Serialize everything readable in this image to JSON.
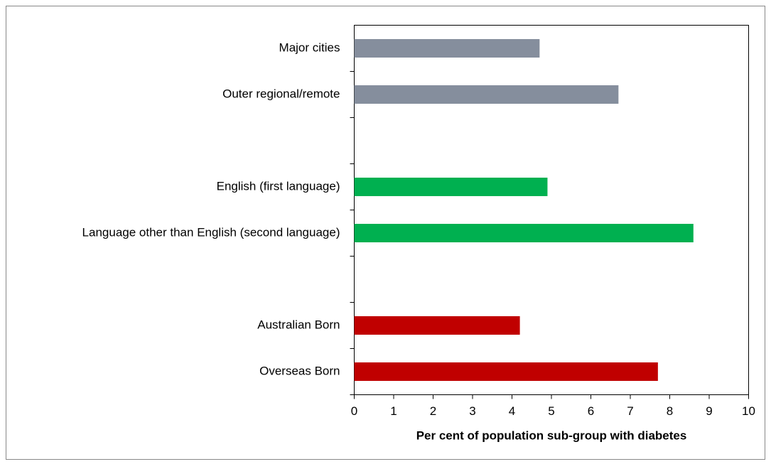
{
  "chart_data": {
    "type": "hbar",
    "xlabel": "Per cent of population sub-group with diabetes",
    "categories": [
      "Major cities",
      "Outer regional/remote",
      null,
      "English (first language)",
      "Language other than English (second language)",
      null,
      "Australian Born",
      "Overseas Born"
    ],
    "values": [
      4.7,
      6.7,
      null,
      4.9,
      8.6,
      null,
      4.2,
      7.7
    ],
    "colors": [
      "#858e9d",
      "#858e9d",
      null,
      "#00b050",
      "#00b050",
      null,
      "#c00000",
      "#c00000"
    ],
    "xlim": [
      0,
      10
    ],
    "xticks": [
      0,
      1,
      2,
      3,
      4,
      5,
      6,
      7,
      8,
      9,
      10
    ]
  }
}
